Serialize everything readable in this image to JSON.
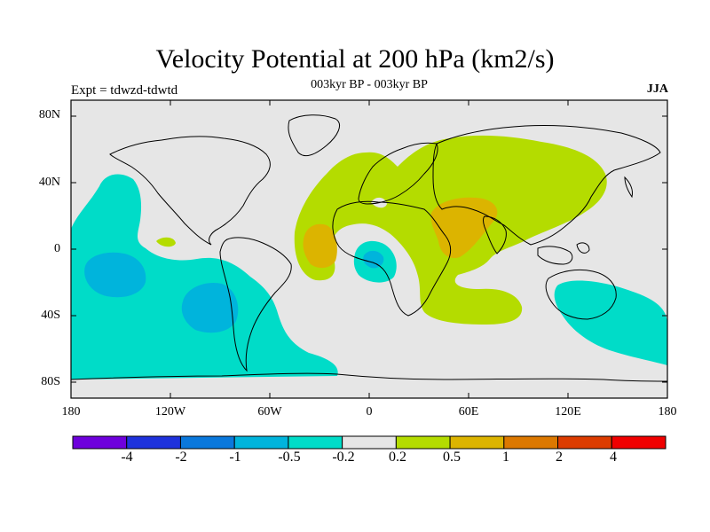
{
  "title": "Velocity Potential at 200 hPa (km2/s)",
  "subtitle": "003kyr BP - 003kyr BP",
  "left_label": "Expt = tdwzd-tdwtd",
  "right_label": "JJA",
  "lat_ticks": [
    "80N",
    "40N",
    "0",
    "40S",
    "80S"
  ],
  "lon_ticks": [
    "180",
    "120W",
    "60W",
    "0",
    "60E",
    "120E",
    "180"
  ],
  "colorbar": {
    "labels": [
      "-4",
      "-2",
      "-1",
      "-0.5",
      "-0.2",
      "0.2",
      "0.5",
      "1",
      "2",
      "4"
    ],
    "colors": [
      "#6e00dc",
      "#1e32dc",
      "#0a78dc",
      "#00b4dc",
      "#00dcc8",
      "#e6e6e6",
      "#b4dc00",
      "#dcb400",
      "#dc7800",
      "#dc3c00",
      "#f00000"
    ]
  },
  "map_colors": {
    "ocean": "#e6e6e6",
    "pos_02": "#b4dc00",
    "pos_05": "#dcb400",
    "neg_02": "#00dcc8",
    "neg_05": "#00b4dc",
    "coast": "#000000"
  }
}
